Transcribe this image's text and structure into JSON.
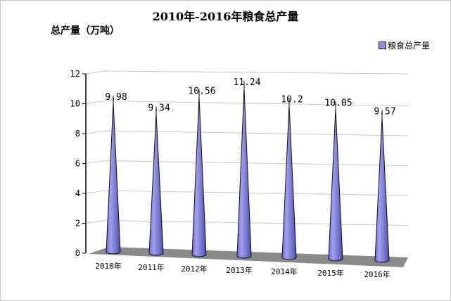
{
  "chart_data": {
    "type": "bar",
    "style": "3d-cone",
    "title": "2010年-2016年粮食总产量",
    "ylabel": "总产量（万吨）",
    "xlabel": "",
    "categories": [
      "2010年",
      "2011年",
      "2012年",
      "2013年",
      "2014年",
      "2015年",
      "2016年"
    ],
    "series": [
      {
        "name": "粮食总产量",
        "values": [
          9.98,
          9.34,
          10.56,
          11.24,
          10.2,
          10.05,
          9.57
        ],
        "labels": [
          "9.98",
          "9.34",
          "10.56",
          "11.24",
          "10.2",
          "10.05",
          "9.57"
        ],
        "color": "#8080dd"
      }
    ],
    "ylim": [
      0,
      12
    ],
    "yticks": [
      "0",
      "2",
      "4",
      "6",
      "8",
      "10",
      "12"
    ],
    "grid": true,
    "legend_position": "top-right"
  }
}
